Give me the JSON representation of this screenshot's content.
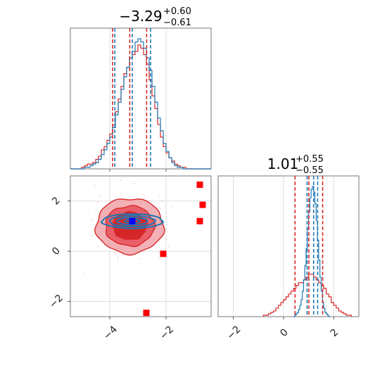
{
  "chart_data": [
    {
      "type": "histogram",
      "panel": "top-left",
      "title": {
        "value": "−3.29",
        "plus": "+0.60",
        "minus": "−0.61"
      },
      "xlim": [
        -5.4,
        -0.4
      ],
      "series": [
        {
          "name": "",
          "color": "#d62728",
          "edges_start": -5.4,
          "bin_width": 0.1,
          "counts": [
            0,
            0,
            0,
            0,
            1,
            2,
            3,
            3,
            4,
            6,
            8,
            12,
            14,
            18,
            22,
            28,
            36,
            44,
            52,
            60,
            64,
            70,
            72,
            74,
            78,
            76,
            72,
            66,
            56,
            46,
            38,
            28,
            20,
            14,
            10,
            7,
            5,
            3,
            2,
            1,
            1,
            0,
            0,
            0,
            0,
            0,
            0,
            0,
            0,
            0
          ],
          "quantiles": [
            -3.9,
            -3.29,
            -2.69
          ]
        },
        {
          "name": "",
          "color": "#1f77b4",
          "edges_start": -5.4,
          "bin_width": 0.1,
          "counts": [
            0,
            0,
            0,
            0,
            0,
            1,
            1,
            2,
            3,
            4,
            6,
            9,
            12,
            16,
            20,
            26,
            34,
            42,
            50,
            58,
            64,
            70,
            74,
            80,
            82,
            80,
            76,
            70,
            62,
            52,
            42,
            32,
            24,
            16,
            11,
            7,
            4,
            2,
            1,
            1,
            0,
            0,
            0,
            0,
            0,
            0,
            0,
            0,
            0,
            0
          ],
          "quantiles": [
            -3.82,
            -3.2,
            -2.55
          ]
        }
      ]
    },
    {
      "type": "contour-scatter",
      "panel": "bottom-left",
      "xlim": [
        -5.4,
        -0.4
      ],
      "ylim": [
        -2.6,
        3.0
      ],
      "xticks": [
        -4,
        -2
      ],
      "yticks": [
        2,
        0,
        -2
      ],
      "xtick_labels": [
        "−4",
        "−2"
      ],
      "ytick_labels": [
        "2",
        "0",
        "−2"
      ],
      "series": [
        {
          "name": "",
          "color": "#d62728",
          "center": [
            -3.29,
            1.01
          ],
          "spread": [
            0.6,
            0.55
          ]
        },
        {
          "name": "",
          "color": "#1f77b4",
          "center": [
            -3.2,
            1.2
          ],
          "spread": [
            0.6,
            0.12
          ]
        }
      ],
      "red_markers": [
        [
          -0.8,
          2.65
        ],
        [
          -0.7,
          1.85
        ],
        [
          -0.8,
          1.2
        ],
        [
          -2.1,
          -0.1
        ],
        [
          -2.7,
          -2.45
        ]
      ],
      "blue_marker": [
        -3.2,
        1.2
      ]
    },
    {
      "type": "histogram",
      "panel": "bottom-right",
      "title": {
        "value": "1.01",
        "plus": "+0.55",
        "minus": "−0.55"
      },
      "xlim": [
        -2.6,
        3.0
      ],
      "xticks": [
        -2,
        0,
        2
      ],
      "xtick_labels": [
        "−2",
        "0",
        "2"
      ],
      "series": [
        {
          "name": "",
          "color": "#d62728",
          "edges_start": -0.8,
          "bin_width": 0.1,
          "counts": [
            1,
            1,
            2,
            3,
            4,
            6,
            8,
            10,
            12,
            14,
            16,
            18,
            20,
            22,
            24,
            24,
            26,
            28,
            30,
            30,
            28,
            26,
            24,
            22,
            20,
            16,
            14,
            10,
            8,
            6,
            4,
            3,
            2,
            1,
            1
          ],
          "quantiles": [
            0.46,
            1.01,
            1.56
          ]
        },
        {
          "name": "",
          "color": "#1f77b4",
          "edges_start": 0.4,
          "bin_width": 0.05,
          "counts": [
            0,
            1,
            2,
            3,
            5,
            8,
            12,
            18,
            26,
            36,
            48,
            62,
            74,
            84,
            90,
            92,
            88,
            80,
            68,
            54,
            40,
            28,
            18,
            10,
            6,
            3,
            2,
            1,
            0
          ],
          "quantiles": [
            0.94,
            1.2,
            1.36
          ]
        }
      ]
    }
  ]
}
